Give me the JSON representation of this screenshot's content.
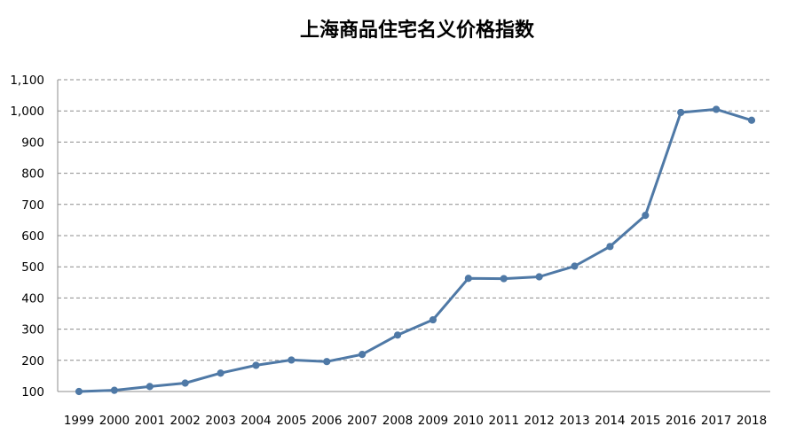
{
  "chart_data": {
    "type": "line",
    "title": "上海商品住宅名义价格指数",
    "xlabel": "",
    "ylabel": "",
    "categories": [
      "1999",
      "2000",
      "2001",
      "2002",
      "2003",
      "2004",
      "2005",
      "2006",
      "2007",
      "2008",
      "2009",
      "2010",
      "2011",
      "2012",
      "2013",
      "2014",
      "2015",
      "2016",
      "2017",
      "2018"
    ],
    "series": [
      {
        "values": [
          100,
          104,
          116,
          127,
          159,
          184,
          201,
          196,
          219,
          281,
          330,
          463,
          462,
          468,
          502,
          565,
          665,
          995,
          1005,
          970
        ]
      }
    ],
    "ylim": [
      100,
      1100
    ],
    "yticks": [
      "100",
      "200",
      "300",
      "400",
      "500",
      "600",
      "700",
      "800",
      "900",
      "1,000",
      "1,100"
    ],
    "grid": "horizontal dashed",
    "legend": "none",
    "colors": {
      "line": "#4f79a6",
      "marker": "#4f79a6",
      "grid": "#8c8c8c",
      "text": "#000000"
    }
  }
}
